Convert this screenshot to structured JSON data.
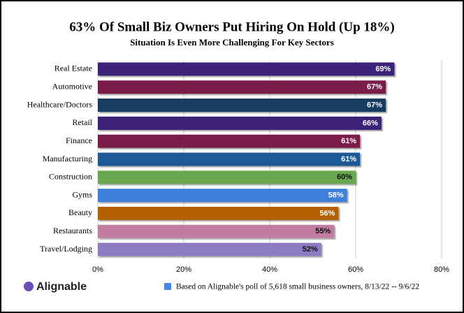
{
  "chart_data": {
    "type": "barh",
    "title": "63% Of Small Biz Owners Put Hiring On Hold (Up 18%)",
    "subtitle": "Situation Is Even More Challenging For Key Sectors",
    "categories": [
      "Real Estate",
      "Automotive",
      "Healthcare/Doctors",
      "Retail",
      "Finance",
      "Manufacturing",
      "Construction",
      "Gyms",
      "Beauty",
      "Restaurants",
      "Travel/Lodging"
    ],
    "values": [
      69,
      67,
      67,
      66,
      61,
      61,
      60,
      58,
      56,
      55,
      52
    ],
    "value_labels": [
      "69%",
      "67%",
      "67%",
      "66%",
      "61%",
      "61%",
      "60%",
      "58%",
      "56%",
      "55%",
      "52%"
    ],
    "colors": [
      "#3b2278",
      "#7a1f4a",
      "#173d60",
      "#3b2278",
      "#7a1f4a",
      "#1a5a96",
      "#6aa84f",
      "#3c7fd9",
      "#b45f06",
      "#c27ba0",
      "#8e7cc3"
    ],
    "xlim": [
      0,
      80
    ],
    "xticks": [
      {
        "value": 0,
        "label": "0%"
      },
      {
        "value": 20,
        "label": "20%"
      },
      {
        "value": 40,
        "label": "40%"
      },
      {
        "value": 60,
        "label": "60%"
      },
      {
        "value": 80,
        "label": "80%"
      }
    ],
    "grid": true,
    "legend": {
      "label": "Based on Alignable's poll of 5,618 small business owners, 8/13/22 -- 9/6/22",
      "color": "#4a86e8"
    },
    "logo": "Alignable"
  }
}
